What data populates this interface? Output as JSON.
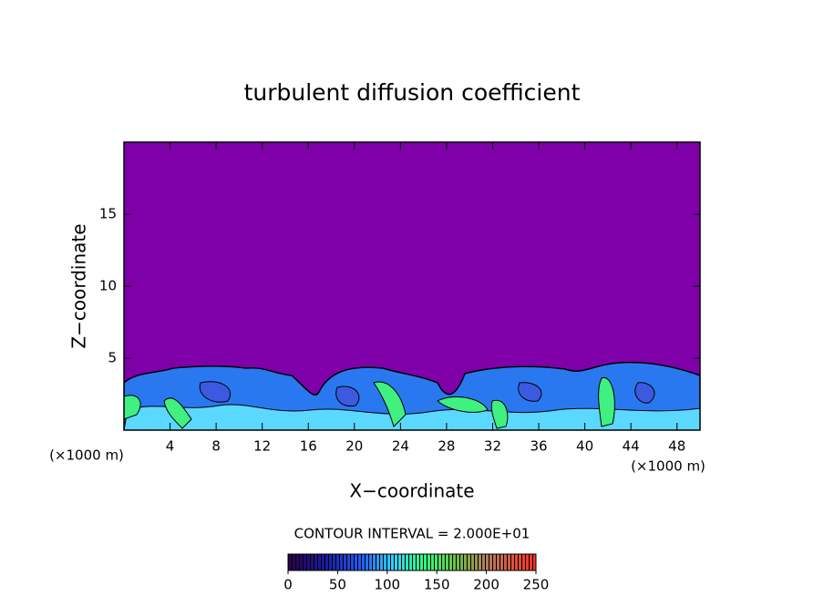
{
  "chart_data": {
    "type": "contour",
    "title": "turbulent diffusion coefficient",
    "xlabel": "X−coordinate",
    "ylabel": "Z−coordinate",
    "xunit": "(×1000 m)",
    "yunit": "(×1000 m)",
    "xlim": [
      0,
      50
    ],
    "xticks": [
      4,
      8,
      12,
      16,
      20,
      24,
      28,
      32,
      36,
      40,
      44,
      48
    ],
    "ylim": [
      0,
      20
    ],
    "yticks": [
      5,
      10,
      15
    ],
    "contour_interval": "CONTOUR INTERVAL = 2.000E+01",
    "colorbar": {
      "lim": [
        0,
        250
      ],
      "ticks": [
        0,
        50,
        100,
        150,
        200,
        250
      ]
    }
  }
}
